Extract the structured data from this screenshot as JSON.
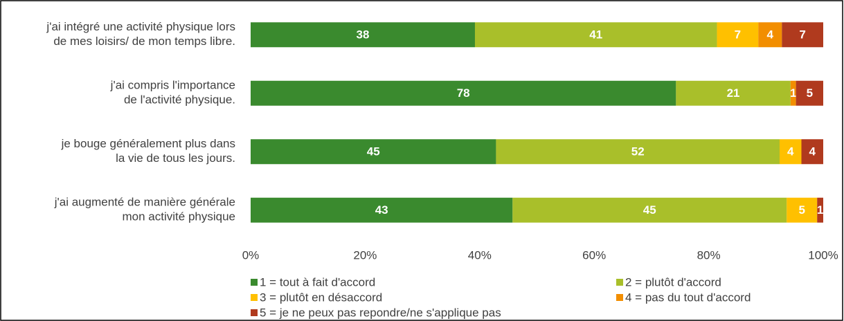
{
  "chart_data": {
    "type": "bar",
    "orientation": "horizontal",
    "stack": "percent",
    "categories": [
      "j'ai intégré une activité physique lors\nde mes loisirs/ de mon temps libre.",
      "j'ai compris l'importance\nde l'activité physique.",
      "je bouge généralement plus dans\nla vie de tous les jours.",
      "j'ai augmenté de manière générale\nmon activité physique"
    ],
    "series": [
      {
        "name": "1 = tout à fait d'accord",
        "color": "#3a8a2e",
        "values": [
          38,
          78,
          45,
          43
        ]
      },
      {
        "name": "2 = plutôt d'accord",
        "color": "#a9bf2a",
        "values": [
          41,
          21,
          52,
          45
        ]
      },
      {
        "name": "3 = plutôt en désaccord",
        "color": "#ffc000",
        "values": [
          7,
          null,
          4,
          5
        ]
      },
      {
        "name": "4 = pas du tout d'accord",
        "color": "#f28e00",
        "values": [
          4,
          1,
          null,
          null
        ]
      },
      {
        "name": "5 = je ne peux pas repondre/ne s'applique pas",
        "color": "#b03a1e",
        "values": [
          7,
          5,
          4,
          1
        ]
      }
    ],
    "xlim": [
      0,
      100
    ],
    "xticks": [
      {
        "value": 0,
        "label": "0%"
      },
      {
        "value": 20,
        "label": "20%"
      },
      {
        "value": 40,
        "label": "40%"
      },
      {
        "value": 60,
        "label": "60%"
      },
      {
        "value": 80,
        "label": "80%"
      },
      {
        "value": 100,
        "label": "100%"
      }
    ],
    "legend": "bottom"
  }
}
